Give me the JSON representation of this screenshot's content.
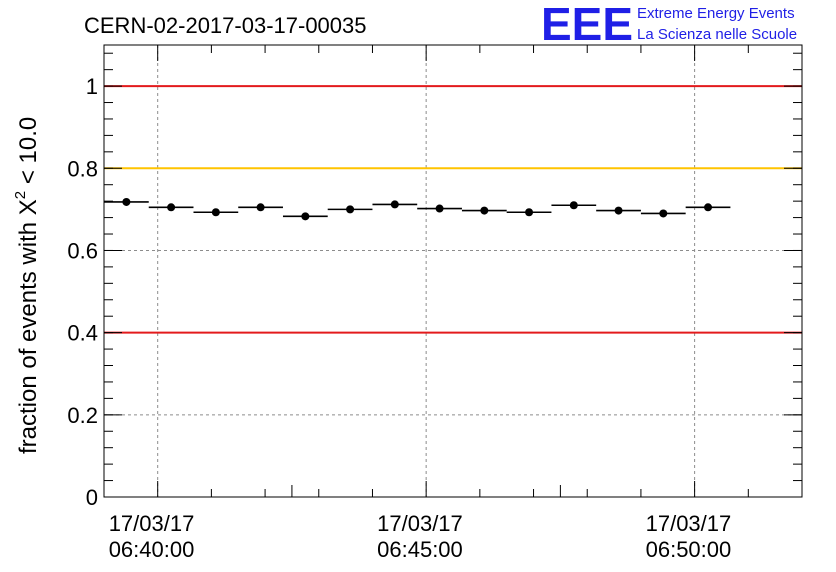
{
  "chart_data": {
    "type": "scatter",
    "title": "CERN-02-2017-03-17-00035",
    "ylabel": "fraction of events with",
    "ylabel_chi_symbol": "X",
    "ylabel_exponent": "2",
    "ylabel_threshold": "< 10.0",
    "ylim": [
      0,
      1.1
    ],
    "yticks": [
      "0",
      "0.2",
      "0.4",
      "0.6",
      "0.8",
      "1"
    ],
    "ytick_values": [
      0,
      0.2,
      0.4,
      0.6,
      0.8,
      1.0
    ],
    "xlim": [
      "06:39:00",
      "06:52:00"
    ],
    "xticks": [
      {
        "time": "06:40:00",
        "date": "17/03/17"
      },
      {
        "time": "06:45:00",
        "date": "17/03/17"
      },
      {
        "time": "06:50:00",
        "date": "17/03/17"
      }
    ],
    "grid": true,
    "reference_lines": [
      {
        "y": 1.0,
        "color": "#e31a1c"
      },
      {
        "y": 0.8,
        "color": "#ffc400"
      },
      {
        "y": 0.4,
        "color": "#e31a1c"
      }
    ],
    "bin_width_seconds": 50,
    "points": [
      {
        "x": "06:39:25",
        "y": 0.718
      },
      {
        "x": "06:40:15",
        "y": 0.705
      },
      {
        "x": "06:41:05",
        "y": 0.693
      },
      {
        "x": "06:41:55",
        "y": 0.705
      },
      {
        "x": "06:42:45",
        "y": 0.683
      },
      {
        "x": "06:43:35",
        "y": 0.7
      },
      {
        "x": "06:44:25",
        "y": 0.712
      },
      {
        "x": "06:45:15",
        "y": 0.702
      },
      {
        "x": "06:46:05",
        "y": 0.697
      },
      {
        "x": "06:46:55",
        "y": 0.693
      },
      {
        "x": "06:47:45",
        "y": 0.71
      },
      {
        "x": "06:48:35",
        "y": 0.697
      },
      {
        "x": "06:49:25",
        "y": 0.69
      },
      {
        "x": "06:50:15",
        "y": 0.705
      }
    ]
  },
  "logo": {
    "mark": "EEE",
    "line1": "Extreme Energy Events",
    "line2": "La Scienza nelle Scuole",
    "color": "#1f1fe6"
  }
}
